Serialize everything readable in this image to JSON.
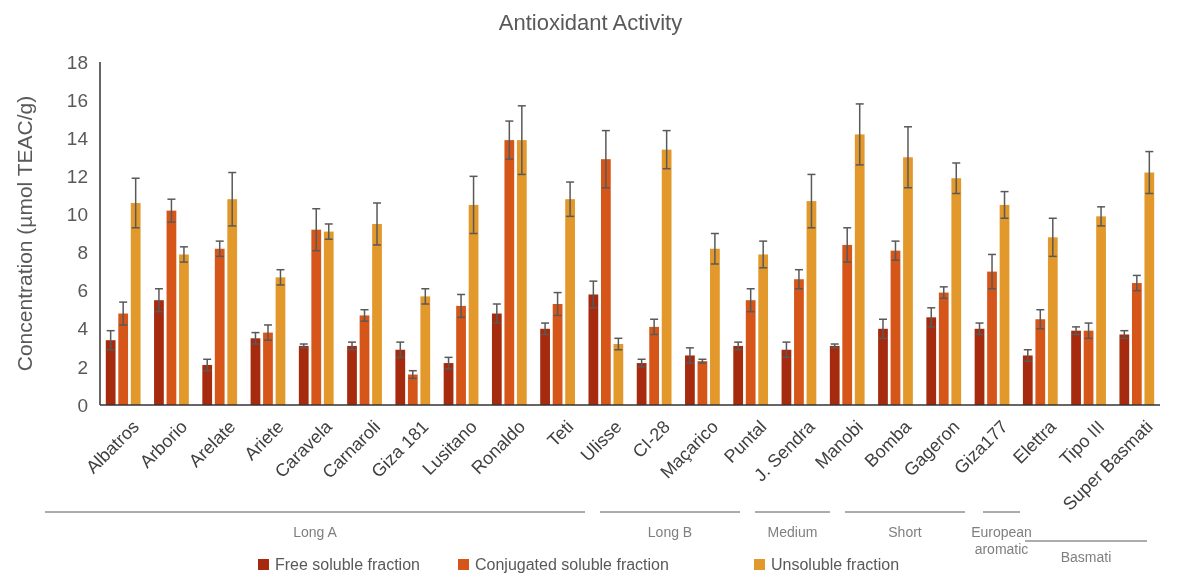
{
  "chart_data": {
    "type": "bar",
    "title": "Antioxidant Activity",
    "ylabel": "Concentration (µmol TEAC/g)",
    "categories": [
      "Albatros",
      "Arborio",
      "Arelate",
      "Ariete",
      "Caravela",
      "Carnaroli",
      "Giza 181",
      "Lusitano",
      "Ronaldo",
      "Teti",
      "Ulisse",
      "CI-28",
      "Maçarico",
      "Puntal",
      "J. Sendra",
      "Manobi",
      "Bomba",
      "Gageron",
      "Giza177",
      "Elettra",
      "Tipo III",
      "Super Basmati"
    ],
    "series": [
      {
        "name": "Free soluble fraction",
        "color": "#a52a0e",
        "values": [
          3.4,
          5.5,
          2.1,
          3.5,
          3.1,
          3.1,
          2.9,
          2.2,
          4.8,
          4.0,
          5.8,
          2.2,
          2.6,
          3.1,
          2.9,
          3.1,
          4.0,
          4.6,
          4.0,
          2.6,
          3.9,
          3.7
        ],
        "errors": [
          0.5,
          0.6,
          0.3,
          0.3,
          0.1,
          0.2,
          0.4,
          0.3,
          0.5,
          0.3,
          0.7,
          0.2,
          0.4,
          0.2,
          0.4,
          0.1,
          0.5,
          0.5,
          0.3,
          0.3,
          0.2,
          0.2
        ]
      },
      {
        "name": "Conjugated soluble fraction",
        "color": "#d65519",
        "values": [
          4.8,
          10.2,
          8.2,
          3.8,
          9.2,
          4.7,
          1.6,
          5.2,
          13.9,
          5.3,
          12.9,
          4.1,
          2.3,
          5.5,
          6.6,
          8.4,
          8.1,
          5.9,
          7.0,
          4.5,
          3.9,
          6.4
        ],
        "errors": [
          0.6,
          0.6,
          0.4,
          0.4,
          1.1,
          0.3,
          0.2,
          0.6,
          1.0,
          0.6,
          1.5,
          0.4,
          0.1,
          0.6,
          0.5,
          0.9,
          0.5,
          0.3,
          0.9,
          0.5,
          0.4,
          0.4
        ]
      },
      {
        "name": "Unsoluble fraction",
        "color": "#e2982a",
        "values": [
          10.6,
          7.9,
          10.8,
          6.7,
          9.1,
          9.5,
          5.7,
          10.5,
          13.9,
          10.8,
          3.2,
          13.4,
          8.2,
          7.9,
          10.7,
          14.2,
          13.0,
          11.9,
          10.5,
          8.8,
          9.9,
          12.2
        ],
        "errors": [
          1.3,
          0.4,
          1.4,
          0.4,
          0.4,
          1.1,
          0.4,
          1.5,
          1.8,
          0.9,
          0.3,
          1.0,
          0.8,
          0.7,
          1.4,
          1.6,
          1.6,
          0.8,
          0.7,
          1.0,
          0.5,
          1.1
        ]
      }
    ],
    "ylim": [
      0,
      18
    ],
    "yticks": [
      0,
      2,
      4,
      6,
      8,
      10,
      12,
      14,
      16,
      18
    ],
    "grid": false,
    "legend": "bottom",
    "annotations": [
      "Long A",
      "Long B",
      "Medium",
      "Short",
      "European\naromatic",
      "Basmati"
    ]
  }
}
